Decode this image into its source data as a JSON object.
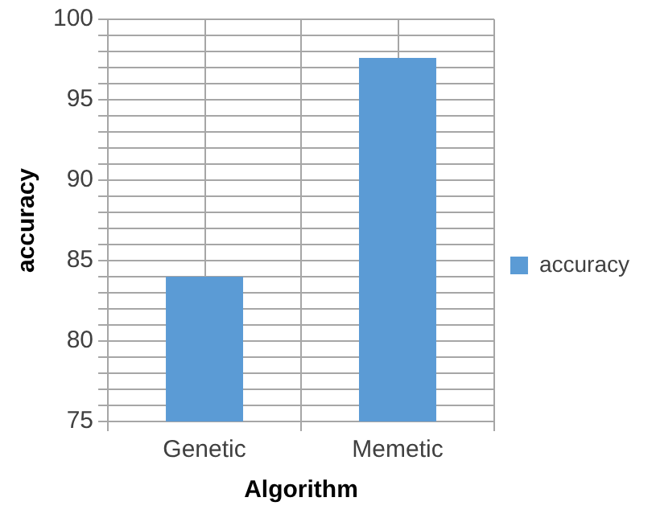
{
  "chart_data": {
    "type": "bar",
    "xlabel": "Algorithm",
    "ylabel": "accuracy",
    "categories": [
      "Genetic",
      "Memetic"
    ],
    "series": [
      {
        "name": "accuracy",
        "color": "#5b9bd5",
        "values": [
          84,
          97.6
        ]
      }
    ],
    "ylim": [
      75,
      100
    ],
    "yticks": [
      75,
      {
        "value": 76,
        "label": null
      },
      {
        "value": 77,
        "label": null
      },
      {
        "value": 78,
        "label": null
      },
      {
        "value": 79,
        "label": null
      },
      80,
      {
        "value": 81,
        "label": null
      },
      {
        "value": 82,
        "label": null
      },
      {
        "value": 83,
        "label": null
      },
      {
        "value": 84,
        "label": null
      },
      85,
      {
        "value": 86,
        "label": null
      },
      {
        "value": 87,
        "label": null
      },
      {
        "value": 88,
        "label": null
      },
      {
        "value": 89,
        "label": null
      },
      90,
      {
        "value": 91,
        "label": null
      },
      {
        "value": 92,
        "label": null
      },
      {
        "value": 93,
        "label": null
      },
      {
        "value": 94,
        "label": null
      },
      95,
      {
        "value": 96,
        "label": null
      },
      {
        "value": 97,
        "label": null
      },
      {
        "value": 98,
        "label": null
      },
      {
        "value": 99,
        "label": null
      },
      100
    ],
    "grid": true,
    "legend": "right"
  }
}
